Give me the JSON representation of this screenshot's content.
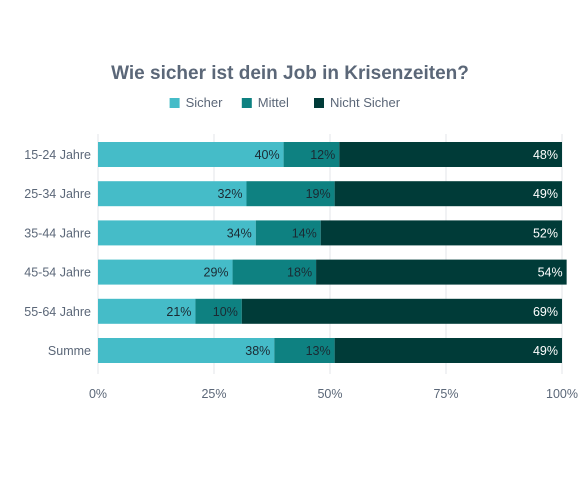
{
  "chart_data": {
    "type": "bar",
    "orientation": "horizontal",
    "stacked": true,
    "title": "Wie sicher ist dein Job in Krisenzeiten?",
    "categories": [
      "15-24 Jahre",
      "25-34 Jahre",
      "35-44 Jahre",
      "45-54 Jahre",
      "55-64 Jahre",
      "Summe"
    ],
    "series": [
      {
        "name": "Sicher",
        "color": "#45bcc8",
        "label_style": "dark",
        "values": [
          40,
          32,
          34,
          29,
          21,
          38
        ]
      },
      {
        "name": "Mittel",
        "color": "#0e8181",
        "label_style": "dark",
        "values": [
          12,
          19,
          14,
          18,
          10,
          13
        ]
      },
      {
        "name": "Nicht Sicher",
        "color": "#003b38",
        "label_style": "light",
        "values": [
          48,
          49,
          52,
          54,
          69,
          49
        ]
      }
    ],
    "value_suffix": "%",
    "xlim": [
      0,
      100
    ],
    "x_ticks": [
      "0%",
      "25%",
      "50%",
      "75%",
      "100%"
    ],
    "legend_position": "top",
    "grid": true
  }
}
